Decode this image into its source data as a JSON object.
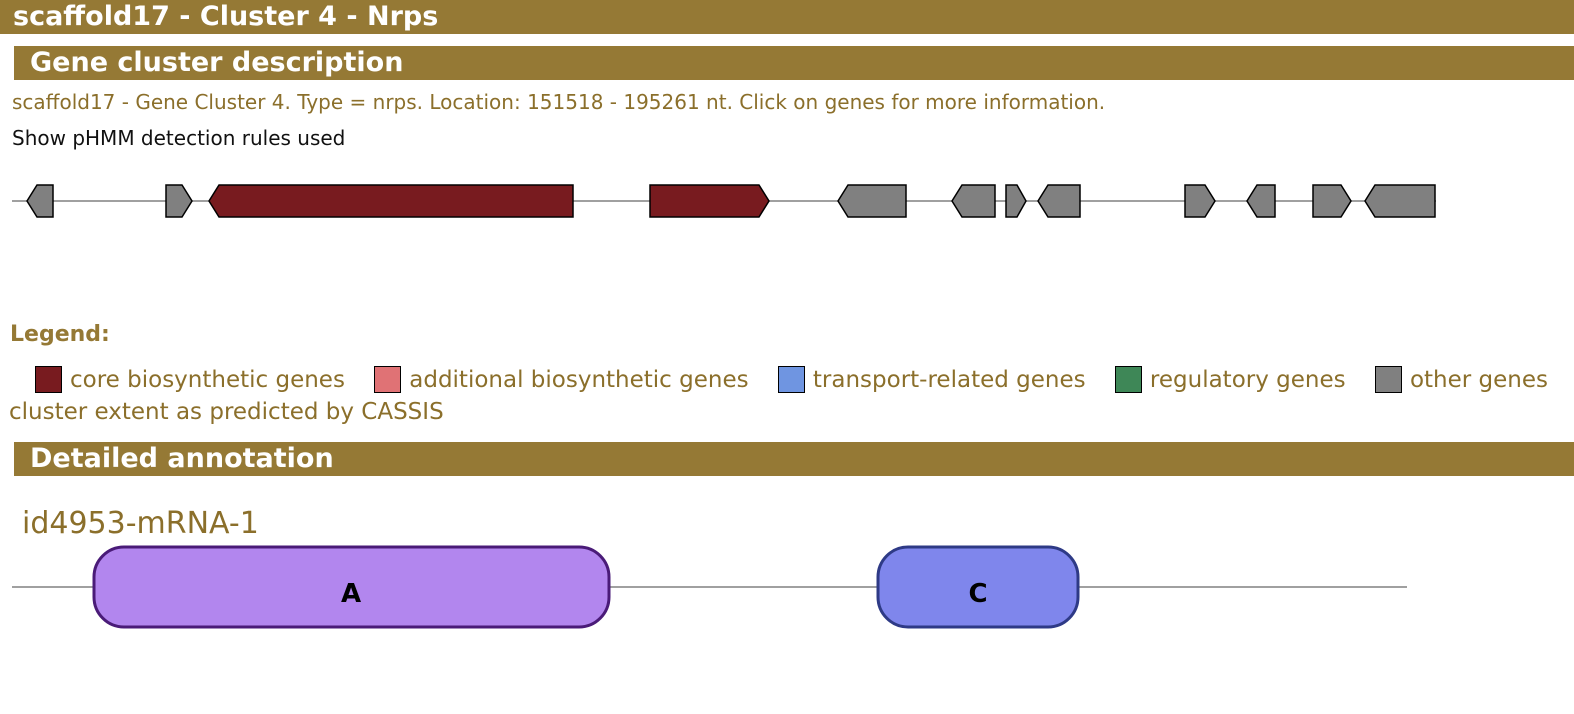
{
  "header": {
    "title": "scaffold17 - Cluster 4 - Nrps"
  },
  "description": {
    "section_title": "Gene cluster description",
    "text": "scaffold17 - Gene Cluster 4. Type = nrps. Location: 151518 - 195261 nt. Click on genes for more information.",
    "rules_link": "Show pHMM detection rules used"
  },
  "cluster_map": {
    "genes": [
      {
        "category": "other",
        "strand": "-"
      },
      {
        "category": "other",
        "strand": "+"
      },
      {
        "category": "core",
        "strand": "-"
      },
      {
        "category": "core",
        "strand": "+"
      },
      {
        "category": "other",
        "strand": "-"
      },
      {
        "category": "other",
        "strand": "-"
      },
      {
        "category": "other",
        "strand": "+"
      },
      {
        "category": "other",
        "strand": "-"
      },
      {
        "category": "other",
        "strand": "+"
      },
      {
        "category": "other",
        "strand": "-"
      },
      {
        "category": "other",
        "strand": "+"
      },
      {
        "category": "other",
        "strand": "-"
      }
    ]
  },
  "legend": {
    "title": "Legend:",
    "items": [
      {
        "label": "core biosynthetic genes",
        "color": "#781b1f"
      },
      {
        "label": "additional biosynthetic genes",
        "color": "#e07275"
      },
      {
        "label": "transport-related genes",
        "color": "#6f95e1"
      },
      {
        "label": "regulatory genes",
        "color": "#3e8757"
      },
      {
        "label": "other genes",
        "color": "#808080"
      }
    ],
    "cassis_text": "cluster extent as predicted by CASSIS"
  },
  "annotation": {
    "section_title": "Detailed annotation",
    "gene_name": "id4953-mRNA-1",
    "domains": [
      {
        "label": "A",
        "fill": "#b286ee",
        "stroke": "#4a1b78"
      },
      {
        "label": "C",
        "fill": "#7f86ec",
        "stroke": "#2e3a86"
      }
    ]
  },
  "colors": {
    "header_bg": "#957935",
    "text_gold": "#8b6f2b",
    "other_gene": "#808080",
    "core_gene": "#781b1f"
  }
}
